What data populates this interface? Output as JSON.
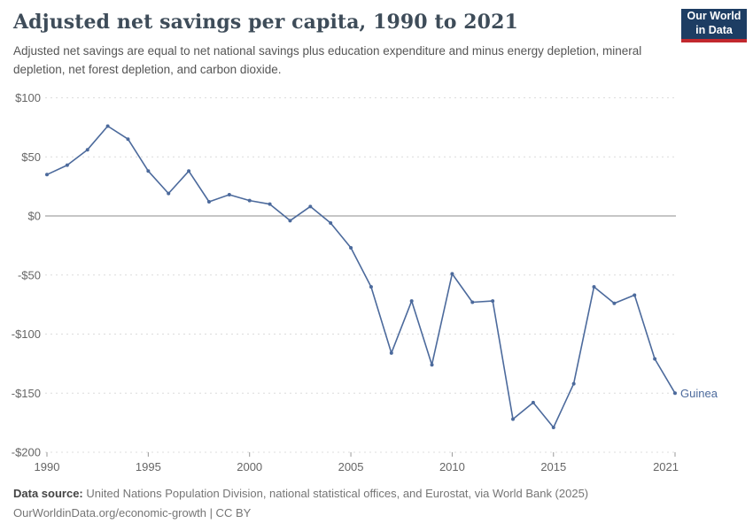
{
  "header": {
    "title": "Adjusted net savings per capita, 1990 to 2021",
    "subtitle": "Adjusted net savings are equal to net national savings plus education expenditure and minus energy depletion, mineral depletion, net forest depletion, and carbon dioxide.",
    "logo": {
      "line1": "Our World",
      "line2": "in Data",
      "bg_color": "#1d3d63",
      "stripe_color": "#c2282e"
    }
  },
  "chart_data": {
    "type": "line",
    "title": "Adjusted net savings per capita, 1990 to 2021",
    "x": [
      1990,
      1991,
      1992,
      1993,
      1994,
      1995,
      1996,
      1997,
      1998,
      1999,
      2000,
      2001,
      2002,
      2003,
      2004,
      2005,
      2006,
      2007,
      2008,
      2009,
      2010,
      2011,
      2012,
      2013,
      2014,
      2015,
      2016,
      2017,
      2018,
      2019,
      2020,
      2021
    ],
    "series": [
      {
        "name": "Guinea",
        "color": "#4c6a9c",
        "values": [
          35,
          43,
          56,
          76,
          65,
          38,
          19,
          38,
          12,
          18,
          13,
          10,
          -4,
          8,
          -6,
          -27,
          -60,
          -116,
          -72,
          -126,
          -49,
          -73,
          -72,
          -172,
          -158,
          -179,
          -142,
          -60,
          -74,
          -67,
          -121,
          -150
        ]
      }
    ],
    "xlabel": "",
    "ylabel": "",
    "ylim": [
      -200,
      100
    ],
    "xlim": [
      1990,
      2021
    ],
    "y_ticks": [
      {
        "value": 100,
        "label": "$100"
      },
      {
        "value": 50,
        "label": "$50"
      },
      {
        "value": 0,
        "label": "$0"
      },
      {
        "value": -50,
        "label": "-$50"
      },
      {
        "value": -100,
        "label": "-$100"
      },
      {
        "value": -150,
        "label": "-$150"
      },
      {
        "value": -200,
        "label": "-$200"
      }
    ],
    "x_ticks": [
      1990,
      1995,
      2000,
      2005,
      2010,
      2015,
      2021
    ],
    "grid": "horizontal-dashed",
    "legend_position": "end-of-line",
    "entity_label": "Guinea",
    "colors": {
      "line": "#4c6a9c",
      "grid": "#dcdcdc",
      "zero_line": "#a5a5a5",
      "tick_text": "#666666",
      "tick_mark": "#999999"
    }
  },
  "footer": {
    "source_label": "Data source:",
    "source_text": "United Nations Population Division, national statistical offices, and Eurostat, via World Bank (2025)",
    "citation": "OurWorldinData.org/economic-growth | CC BY"
  }
}
